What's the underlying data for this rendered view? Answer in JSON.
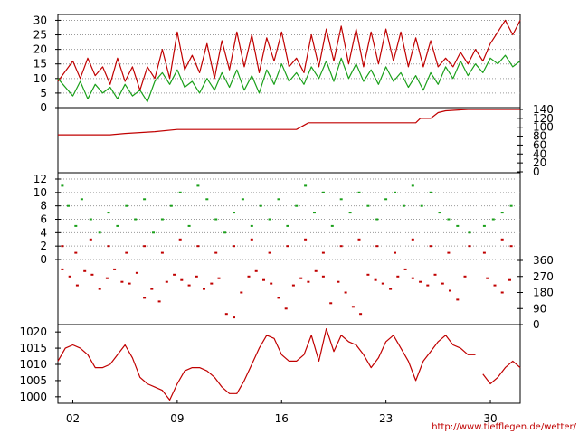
{
  "footer": {
    "source_url": "http://www.tiefflegen.de/wetter/"
  },
  "colors": {
    "red": "#c00000",
    "green": "#1aa01a",
    "grid": "#9a9a9a",
    "frame": "#000000"
  },
  "chart_data": [
    {
      "type": "line",
      "panel": "temperature",
      "x_domain": [
        0,
        31
      ],
      "ylim": [
        0,
        32
      ],
      "y_ticks": [
        "0",
        "5",
        "10",
        "15",
        "20",
        "25",
        "30"
      ],
      "y_axis_side": "left",
      "grid": true,
      "series": [
        {
          "color": "#c00000",
          "x": [
            0,
            1,
            1.5,
            2,
            2.5,
            3,
            3.5,
            4,
            4.5,
            5,
            5.5,
            6,
            6.5,
            7,
            7.5,
            8,
            8.5,
            9,
            9.5,
            10,
            10.5,
            11,
            11.5,
            12,
            12.5,
            13,
            13.5,
            14,
            14.5,
            15,
            15.5,
            16,
            16.5,
            17,
            17.5,
            18,
            18.5,
            19,
            19.5,
            20,
            20.5,
            21,
            21.5,
            22,
            22.5,
            23,
            23.5,
            24,
            24.5,
            25,
            25.5,
            26,
            26.5,
            27,
            27.5,
            28,
            28.5,
            29,
            29.5,
            30,
            30.5,
            31
          ],
          "values": [
            9,
            16,
            10,
            17,
            11,
            14,
            8,
            17,
            9,
            14,
            6,
            14,
            10,
            20,
            10,
            26,
            13,
            18,
            12,
            22,
            10,
            23,
            13,
            26,
            14,
            25,
            12,
            24,
            16,
            26,
            14,
            17,
            12,
            25,
            14,
            27,
            16,
            28,
            15,
            27,
            14,
            26,
            15,
            27,
            16,
            26,
            14,
            24,
            14,
            23,
            14,
            17,
            14,
            19,
            15,
            20,
            16,
            22,
            26,
            30,
            25,
            30
          ]
        },
        {
          "color": "#1aa01a",
          "x": [
            0,
            1,
            1.5,
            2,
            2.5,
            3,
            3.5,
            4,
            4.5,
            5,
            5.5,
            6,
            6.5,
            7,
            7.5,
            8,
            8.5,
            9,
            9.5,
            10,
            10.5,
            11,
            11.5,
            12,
            12.5,
            13,
            13.5,
            14,
            14.5,
            15,
            15.5,
            16,
            16.5,
            17,
            17.5,
            18,
            18.5,
            19,
            19.5,
            20,
            20.5,
            21,
            21.5,
            22,
            22.5,
            23,
            23.5,
            24,
            24.5,
            25,
            25.5,
            26,
            26.5,
            27,
            27.5,
            28,
            28.5,
            29,
            29.5,
            30,
            30.5,
            31
          ],
          "values": [
            10,
            4,
            9,
            3,
            8,
            5,
            7,
            3,
            8,
            4,
            6,
            2,
            9,
            12,
            8,
            13,
            7,
            9,
            5,
            10,
            6,
            12,
            7,
            13,
            6,
            11,
            5,
            13,
            8,
            15,
            9,
            12,
            8,
            14,
            10,
            16,
            9,
            17,
            10,
            15,
            9,
            13,
            8,
            14,
            9,
            12,
            7,
            11,
            6,
            12,
            8,
            14,
            10,
            16,
            11,
            15,
            12,
            17,
            15,
            18,
            14,
            16
          ]
        }
      ]
    },
    {
      "type": "line",
      "panel": "rainfall-cumulative",
      "x_domain": [
        0,
        31
      ],
      "ylim": [
        0,
        140
      ],
      "y_ticks": [
        "0",
        "20",
        "40",
        "60",
        "80",
        "100",
        "120",
        "140"
      ],
      "y_axis_side": "right",
      "grid": false,
      "series": [
        {
          "color": "#c00000",
          "x": [
            0,
            3.5,
            4.5,
            6.5,
            8,
            16,
            16.8,
            24,
            24.3,
            25,
            25.5,
            26,
            27.5,
            29.5,
            31
          ],
          "values": [
            83,
            83,
            86,
            90,
            95,
            95,
            110,
            110,
            120,
            120,
            133,
            137,
            140,
            140,
            140
          ]
        }
      ]
    },
    {
      "type": "scatter",
      "panel": "wind",
      "x_domain": [
        0,
        31
      ],
      "ylim": [
        0,
        12
      ],
      "y_ticks": [
        "0",
        "2",
        "4",
        "6",
        "8",
        "10",
        "12"
      ],
      "y_axis_side": "left",
      "grid": true,
      "series": [
        {
          "color": "#1aa01a",
          "x": [
            0.3,
            0.7,
            1.2,
            1.6,
            2.2,
            2.8,
            3.4,
            4.0,
            4.6,
            5.2,
            5.8,
            6.4,
            7.0,
            7.6,
            8.2,
            8.8,
            9.4,
            10.0,
            10.6,
            11.2,
            11.8,
            12.4,
            13.0,
            13.6,
            14.2,
            14.8,
            15.4,
            16.0,
            16.6,
            17.2,
            17.8,
            18.4,
            19.0,
            19.6,
            20.2,
            20.8,
            21.4,
            22.0,
            22.6,
            23.2,
            23.8,
            24.4,
            25.0,
            25.6,
            26.2,
            26.8,
            27.6,
            28.6,
            29.2,
            29.8,
            30.4
          ],
          "values": [
            11,
            8,
            5,
            9,
            6,
            4,
            7,
            5,
            8,
            6,
            9,
            4,
            6,
            8,
            10,
            5,
            11,
            9,
            6,
            4,
            7,
            9,
            5,
            8,
            6,
            9,
            5,
            8,
            11,
            7,
            10,
            5,
            9,
            7,
            10,
            8,
            6,
            9,
            10,
            8,
            11,
            8,
            10,
            7,
            6,
            5,
            4,
            5,
            6,
            7,
            8
          ]
        },
        {
          "color": "#c00000",
          "x": [
            0.3,
            1.2,
            2.2,
            3.4,
            4.6,
            5.8,
            7.0,
            8.2,
            9.4,
            10.6,
            11.8,
            13.0,
            14.2,
            15.4,
            16.6,
            17.8,
            19.0,
            20.2,
            21.4,
            22.6,
            23.8,
            25.0,
            26.2,
            27.6,
            28.6,
            29.8,
            30.4
          ],
          "values": [
            2,
            1,
            3,
            2,
            1,
            2,
            1,
            3,
            2,
            1,
            2,
            3,
            1,
            2,
            3,
            1,
            2,
            3,
            2,
            1,
            3,
            2,
            1,
            2,
            1,
            3,
            2
          ]
        }
      ]
    },
    {
      "type": "scatter",
      "panel": "wind-direction",
      "x_domain": [
        0,
        31
      ],
      "ylim": [
        0,
        360
      ],
      "y_ticks": [
        "0",
        "90",
        "180",
        "270",
        "360"
      ],
      "y_axis_side": "right",
      "grid": false,
      "series": [
        {
          "color": "#c00000",
          "x": [
            0.3,
            0.8,
            1.3,
            1.8,
            2.3,
            2.8,
            3.3,
            3.8,
            4.3,
            4.8,
            5.3,
            5.8,
            6.3,
            6.8,
            7.3,
            7.8,
            8.3,
            8.8,
            9.3,
            9.8,
            10.3,
            10.8,
            11.3,
            11.8,
            12.3,
            12.8,
            13.3,
            13.8,
            14.3,
            14.8,
            15.3,
            15.8,
            16.3,
            16.8,
            17.3,
            17.8,
            18.3,
            18.8,
            19.3,
            19.8,
            20.3,
            20.8,
            21.3,
            21.8,
            22.3,
            22.8,
            23.3,
            23.8,
            24.3,
            24.8,
            25.3,
            25.8,
            26.3,
            26.8,
            27.3,
            28.8,
            29.3,
            29.8,
            30.3
          ],
          "values": [
            310,
            270,
            220,
            300,
            280,
            200,
            260,
            310,
            240,
            230,
            290,
            150,
            200,
            130,
            240,
            280,
            250,
            220,
            270,
            200,
            230,
            260,
            60,
            40,
            180,
            270,
            300,
            250,
            230,
            150,
            90,
            220,
            260,
            240,
            300,
            270,
            120,
            240,
            180,
            100,
            60,
            280,
            250,
            230,
            200,
            270,
            310,
            260,
            240,
            220,
            280,
            230,
            190,
            140,
            270,
            260,
            220,
            180,
            250
          ]
        }
      ]
    },
    {
      "type": "line",
      "panel": "pressure",
      "x_domain": [
        0,
        31
      ],
      "ylim": [
        998,
        1022
      ],
      "y_ticks": [
        "1000",
        "1005",
        "1010",
        "1015",
        "1020"
      ],
      "y_axis_side": "left",
      "grid": false,
      "x_ticks": [
        {
          "x": 1,
          "label": "02"
        },
        {
          "x": 8,
          "label": "09"
        },
        {
          "x": 15,
          "label": "16"
        },
        {
          "x": 22,
          "label": "23"
        },
        {
          "x": 29,
          "label": "30"
        }
      ],
      "series": [
        {
          "color": "#c00000",
          "x": [
            0,
            0.5,
            1,
            1.5,
            2,
            2.5,
            3,
            3.5,
            4,
            4.5,
            5,
            5.5,
            6,
            6.5,
            7,
            7.5,
            8,
            8.5,
            9,
            9.5,
            10,
            10.5,
            11,
            11.5,
            12,
            12.5,
            13,
            13.5,
            14,
            14.5,
            15,
            15.5,
            16,
            16.5,
            17,
            17.5,
            18,
            18.5,
            19,
            19.5,
            20,
            20.5,
            21,
            21.5,
            22,
            22.5,
            23,
            23.5,
            24,
            24.5,
            25,
            25.5,
            26,
            26.5,
            27,
            27.5,
            28,
            null,
            28.5,
            29,
            29.5,
            30,
            30.5,
            31
          ],
          "values": [
            1011,
            1015,
            1016,
            1015,
            1013,
            1009,
            1009,
            1010,
            1013,
            1016,
            1012,
            1006,
            1004,
            1003,
            1002,
            999,
            1004,
            1008,
            1009,
            1009,
            1008,
            1006,
            1003,
            1001,
            1001,
            1005,
            1010,
            1015,
            1019,
            1018,
            1013,
            1011,
            1011,
            1013,
            1019,
            1011,
            1021,
            1014,
            1019,
            1017,
            1016,
            1013,
            1009,
            1012,
            1017,
            1019,
            1015,
            1011,
            1005,
            1011,
            1014,
            1017,
            1019,
            1016,
            1015,
            1013,
            1013,
            null,
            1007,
            1004,
            1006,
            1009,
            1011,
            1009
          ]
        }
      ]
    }
  ]
}
